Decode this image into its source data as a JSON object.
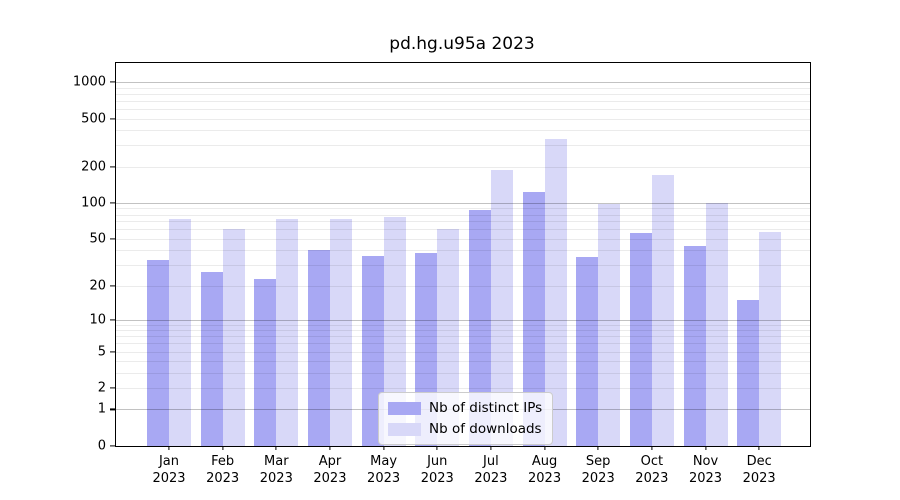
{
  "title": "pd.hg.u95a 2023",
  "colors": {
    "ips_bar": "#a8a8f3",
    "downloads_bar": "#d8d8f8",
    "grid_major": "rgba(0,0,0,0.24)",
    "grid_minor": "rgba(0,0,0,0.08)",
    "spine": "#000000",
    "legend_border": "#cccccc"
  },
  "chart_data": {
    "type": "bar",
    "title": "pd.hg.u95a 2023",
    "categories": [
      "Jan 2023",
      "Feb 2023",
      "Mar 2023",
      "Apr 2023",
      "May 2023",
      "Jun 2023",
      "Jul 2023",
      "Aug 2023",
      "Sep 2023",
      "Oct 2023",
      "Nov 2023",
      "Dec 2023"
    ],
    "series": [
      {
        "name": "Nb of distinct IPs",
        "color": "#a8a8f3",
        "values": [
          33,
          26,
          23,
          40,
          36,
          38,
          87,
          124,
          35,
          56,
          44,
          15
        ]
      },
      {
        "name": "Nb of downloads",
        "color": "#d8d8f8",
        "values": [
          73,
          60,
          73,
          73,
          76,
          60,
          188,
          340,
          98,
          170,
          100,
          57
        ]
      }
    ],
    "y_scale": "log1p",
    "y_ticks": [
      0,
      1,
      2,
      5,
      10,
      20,
      50,
      100,
      200,
      500,
      1000
    ],
    "y_minor_gridlines": [
      2,
      3,
      4,
      5,
      6,
      7,
      8,
      9,
      20,
      30,
      40,
      50,
      60,
      70,
      80,
      90,
      200,
      300,
      400,
      500,
      600,
      700,
      800,
      900
    ],
    "y_major_gridlines": [
      1,
      10,
      100,
      1000
    ],
    "ylim": [
      0,
      1400
    ],
    "grid": "on",
    "legend_position": "bottom-center",
    "legend": [
      "Nb of distinct IPs",
      "Nb of downloads"
    ]
  }
}
